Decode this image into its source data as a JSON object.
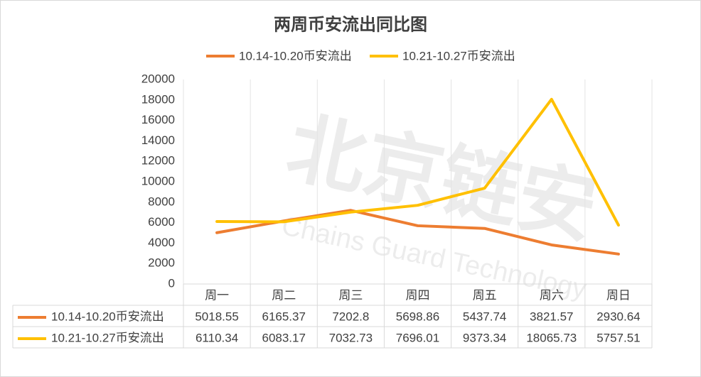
{
  "chart_data": {
    "type": "line",
    "title": "两周币安流出同比图",
    "categories": [
      "周一",
      "周二",
      "周三",
      "周四",
      "周五",
      "周六",
      "周日"
    ],
    "series": [
      {
        "name": "10.14-10.20币安流出",
        "color": "#ED7D31",
        "values": [
          5018.55,
          6165.37,
          7202.8,
          5698.86,
          5437.74,
          3821.57,
          2930.64
        ]
      },
      {
        "name": "10.21-10.27币安流出",
        "color": "#FFC000",
        "values": [
          6110.34,
          6083.17,
          7032.73,
          7696.01,
          9373.34,
          18065.73,
          5757.51
        ]
      }
    ],
    "ylim": [
      0,
      20000
    ],
    "yticks": [
      0,
      2000,
      4000,
      6000,
      8000,
      10000,
      12000,
      14000,
      16000,
      18000,
      20000
    ],
    "legend": "top",
    "data_table": true,
    "watermark": {
      "title": "北京链安",
      "subtitle": "Chains Guard Technology"
    }
  }
}
